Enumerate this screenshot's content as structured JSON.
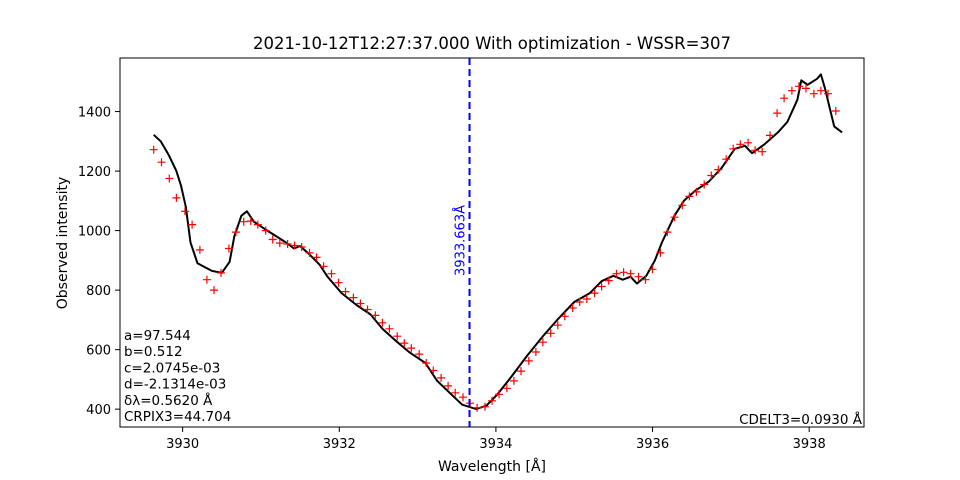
{
  "chart_data": {
    "type": "line",
    "title": "2021-10-12T12:27:37.000 With optimization - WSSR=307",
    "xlabel": "Wavelength [Å]",
    "ylabel": "Observed intensity",
    "xlim": [
      3929.2,
      3938.7
    ],
    "ylim": [
      340,
      1580
    ],
    "xticks": [
      3930,
      3932,
      3934,
      3936,
      3938
    ],
    "yticks": [
      400,
      600,
      800,
      1000,
      1200,
      1400
    ],
    "grid": false,
    "vertical_line": {
      "x": 3933.663,
      "label": "3933.663Å",
      "color": "#0000ff"
    },
    "annotations_left": [
      "a=97.544",
      "b=0.512",
      "c=2.0745e-03",
      "d=-2.1314e-03",
      "δλ=0.5620 Å",
      "CRPIX3=44.704"
    ],
    "annotation_right": "CDELT3=0.0930 Å",
    "series": [
      {
        "kind": "line",
        "color": "#000000",
        "points": [
          [
            3929.63,
            1322
          ],
          [
            3929.72,
            1300
          ],
          [
            3929.82,
            1255
          ],
          [
            3929.92,
            1200
          ],
          [
            3929.98,
            1150
          ],
          [
            3930.04,
            1080
          ],
          [
            3930.1,
            960
          ],
          [
            3930.19,
            890
          ],
          [
            3930.37,
            865
          ],
          [
            3930.5,
            858
          ],
          [
            3930.6,
            895
          ],
          [
            3930.66,
            980
          ],
          [
            3930.75,
            1050
          ],
          [
            3930.82,
            1065
          ],
          [
            3930.91,
            1030
          ],
          [
            3931.05,
            1005
          ],
          [
            3931.2,
            980
          ],
          [
            3931.32,
            960
          ],
          [
            3931.42,
            940
          ],
          [
            3931.5,
            948
          ],
          [
            3931.62,
            920
          ],
          [
            3931.75,
            885
          ],
          [
            3931.85,
            845
          ],
          [
            3932.03,
            790
          ],
          [
            3932.22,
            750
          ],
          [
            3932.4,
            718
          ],
          [
            3932.55,
            670
          ],
          [
            3932.72,
            630
          ],
          [
            3932.9,
            590
          ],
          [
            3933.1,
            555
          ],
          [
            3933.25,
            495
          ],
          [
            3933.45,
            445
          ],
          [
            3933.57,
            415
          ],
          [
            3933.75,
            400
          ],
          [
            3933.88,
            412
          ],
          [
            3934.02,
            450
          ],
          [
            3934.2,
            510
          ],
          [
            3934.4,
            580
          ],
          [
            3934.6,
            645
          ],
          [
            3934.8,
            705
          ],
          [
            3935.0,
            760
          ],
          [
            3935.2,
            790
          ],
          [
            3935.35,
            830
          ],
          [
            3935.5,
            848
          ],
          [
            3935.62,
            835
          ],
          [
            3935.72,
            845
          ],
          [
            3935.8,
            822
          ],
          [
            3935.92,
            848
          ],
          [
            3936.03,
            900
          ],
          [
            3936.12,
            960
          ],
          [
            3936.28,
            1050
          ],
          [
            3936.4,
            1100
          ],
          [
            3936.55,
            1135
          ],
          [
            3936.72,
            1165
          ],
          [
            3936.88,
            1210
          ],
          [
            3937.05,
            1275
          ],
          [
            3937.18,
            1285
          ],
          [
            3937.27,
            1260
          ],
          [
            3937.43,
            1290
          ],
          [
            3937.6,
            1330
          ],
          [
            3937.72,
            1365
          ],
          [
            3937.85,
            1440
          ],
          [
            3937.9,
            1505
          ],
          [
            3937.98,
            1490
          ],
          [
            3938.1,
            1510
          ],
          [
            3938.15,
            1525
          ],
          [
            3938.2,
            1480
          ],
          [
            3938.32,
            1350
          ],
          [
            3938.42,
            1330
          ]
        ]
      },
      {
        "kind": "scatter",
        "marker": "+",
        "color": "#ff0000",
        "points": [
          [
            3929.63,
            1272
          ],
          [
            3929.73,
            1230
          ],
          [
            3929.83,
            1175
          ],
          [
            3929.92,
            1110
          ],
          [
            3930.03,
            1065
          ],
          [
            3930.12,
            1020
          ],
          [
            3930.22,
            935
          ],
          [
            3930.31,
            835
          ],
          [
            3930.4,
            800
          ],
          [
            3930.49,
            858
          ],
          [
            3930.59,
            940
          ],
          [
            3930.68,
            995
          ],
          [
            3930.78,
            1030
          ],
          [
            3930.87,
            1032
          ],
          [
            3930.96,
            1020
          ],
          [
            3931.06,
            1000
          ],
          [
            3931.15,
            970
          ],
          [
            3931.24,
            958
          ],
          [
            3931.34,
            955
          ],
          [
            3931.43,
            950
          ],
          [
            3931.52,
            945
          ],
          [
            3931.62,
            925
          ],
          [
            3931.71,
            910
          ],
          [
            3931.8,
            880
          ],
          [
            3931.9,
            855
          ],
          [
            3931.99,
            825
          ],
          [
            3932.08,
            795
          ],
          [
            3932.18,
            775
          ],
          [
            3932.27,
            755
          ],
          [
            3932.36,
            735
          ],
          [
            3932.46,
            715
          ],
          [
            3932.55,
            690
          ],
          [
            3932.64,
            670
          ],
          [
            3932.74,
            645
          ],
          [
            3932.83,
            622
          ],
          [
            3932.92,
            605
          ],
          [
            3933.02,
            585
          ],
          [
            3933.11,
            555
          ],
          [
            3933.2,
            530
          ],
          [
            3933.3,
            505
          ],
          [
            3933.39,
            478
          ],
          [
            3933.48,
            455
          ],
          [
            3933.58,
            440
          ],
          [
            3933.67,
            420
          ],
          [
            3933.76,
            405
          ],
          [
            3933.86,
            408
          ],
          [
            3933.95,
            428
          ],
          [
            3934.04,
            450
          ],
          [
            3934.14,
            470
          ],
          [
            3934.23,
            495
          ],
          [
            3934.32,
            528
          ],
          [
            3934.42,
            562
          ],
          [
            3934.51,
            592
          ],
          [
            3934.6,
            625
          ],
          [
            3934.7,
            655
          ],
          [
            3934.79,
            682
          ],
          [
            3934.88,
            712
          ],
          [
            3934.98,
            740
          ],
          [
            3935.07,
            760
          ],
          [
            3935.16,
            770
          ],
          [
            3935.26,
            790
          ],
          [
            3935.35,
            812
          ],
          [
            3935.44,
            832
          ],
          [
            3935.54,
            855
          ],
          [
            3935.63,
            860
          ],
          [
            3935.72,
            855
          ],
          [
            3935.82,
            845
          ],
          [
            3935.91,
            835
          ],
          [
            3936.0,
            870
          ],
          [
            3936.1,
            925
          ],
          [
            3936.19,
            995
          ],
          [
            3936.28,
            1045
          ],
          [
            3936.38,
            1085
          ],
          [
            3936.47,
            1115
          ],
          [
            3936.56,
            1130
          ],
          [
            3936.66,
            1155
          ],
          [
            3936.75,
            1185
          ],
          [
            3936.84,
            1205
          ],
          [
            3936.94,
            1240
          ],
          [
            3937.03,
            1275
          ],
          [
            3937.12,
            1290
          ],
          [
            3937.22,
            1295
          ],
          [
            3937.31,
            1270
          ],
          [
            3937.4,
            1265
          ],
          [
            3937.5,
            1320
          ],
          [
            3937.59,
            1395
          ],
          [
            3937.68,
            1445
          ],
          [
            3937.78,
            1470
          ],
          [
            3937.87,
            1485
          ],
          [
            3937.96,
            1478
          ],
          [
            3938.06,
            1460
          ],
          [
            3938.15,
            1470
          ],
          [
            3938.24,
            1460
          ],
          [
            3938.34,
            1402
          ]
        ]
      }
    ]
  }
}
